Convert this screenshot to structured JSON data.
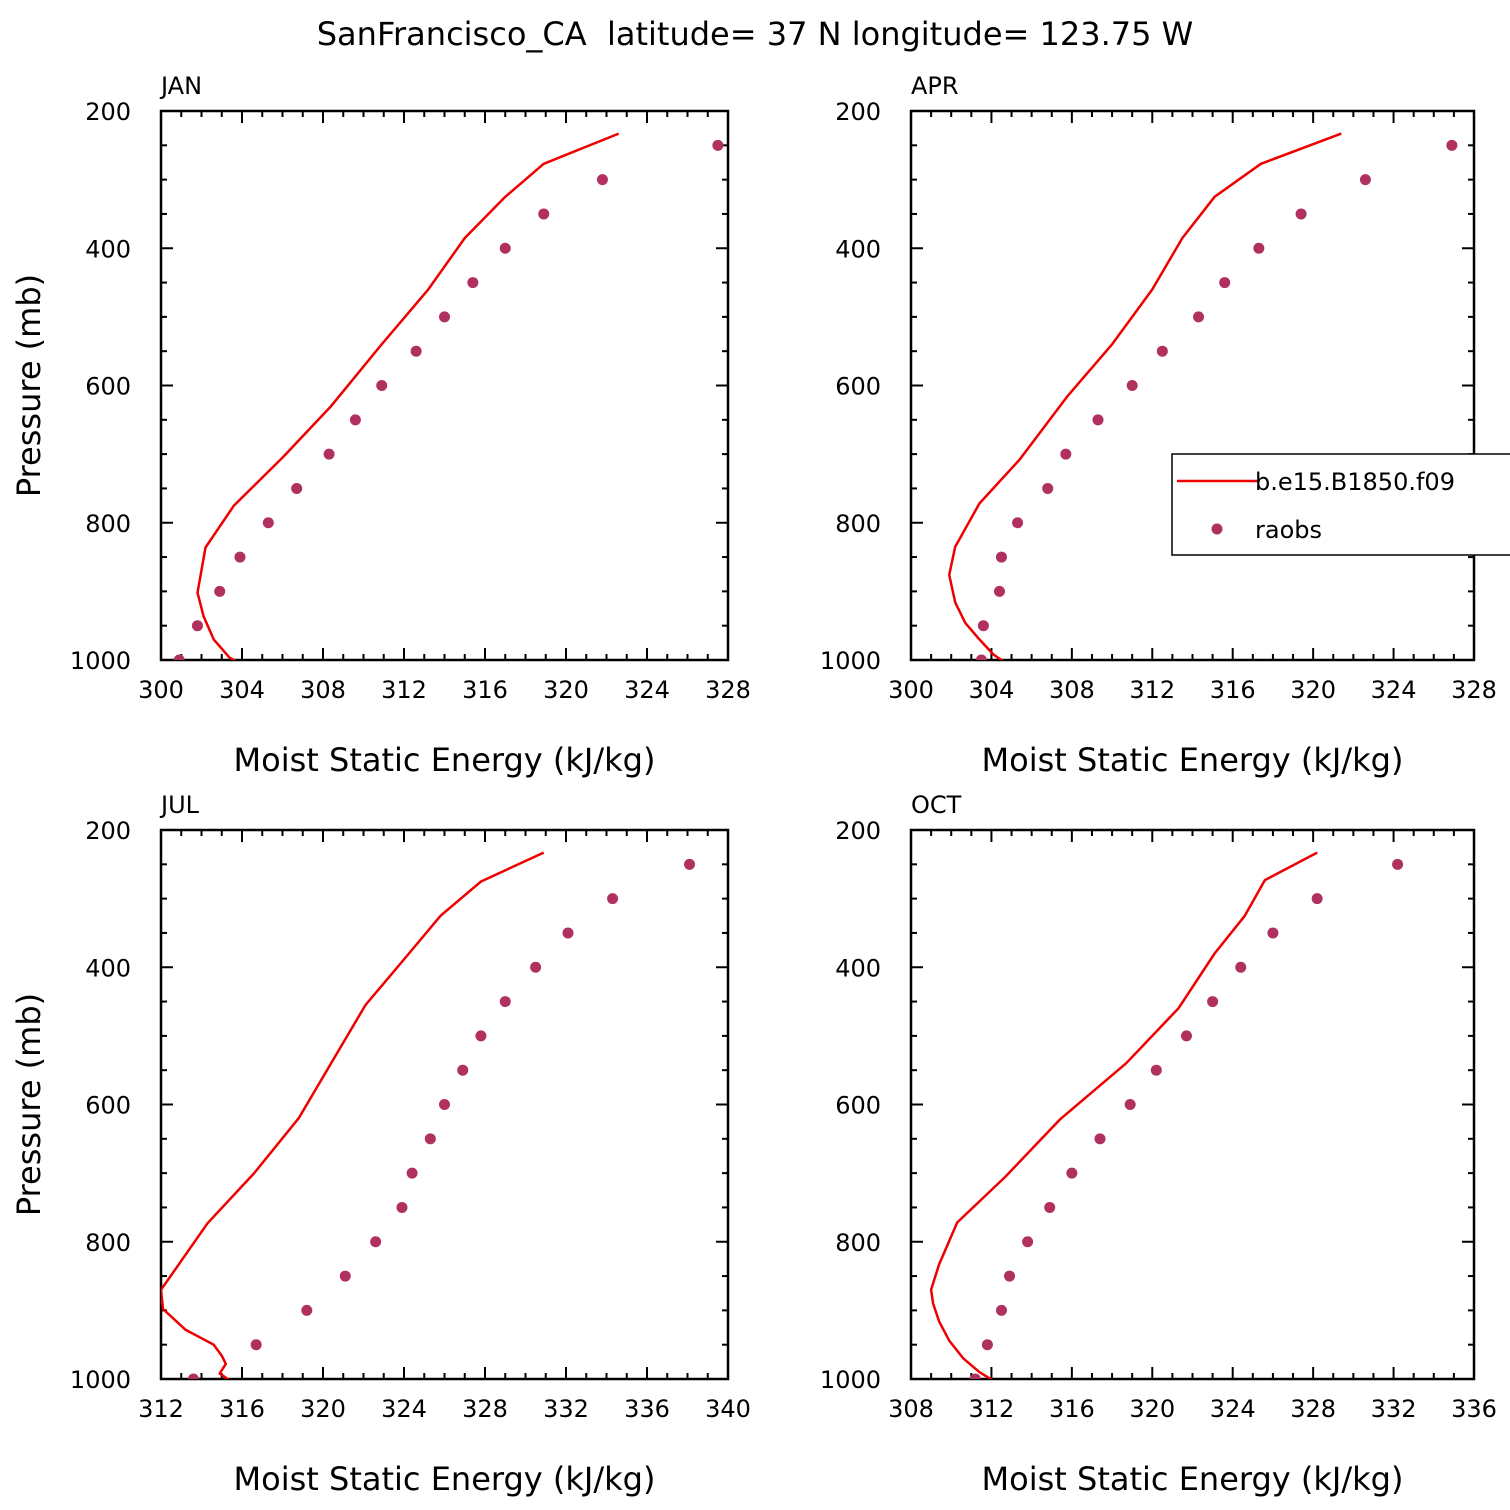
{
  "title": "SanFrancisco_CA  latitude= 37 N longitude= 123.75 W",
  "colors": {
    "model": "#ee0000",
    "obs": "#b03060",
    "axis": "#000000"
  },
  "legend": {
    "position": "right",
    "panel": 1,
    "entries": [
      "b.e15.B1850.f09",
      "raobs"
    ]
  },
  "chart_data": [
    {
      "type": "line",
      "panel_label": "JAN",
      "xlabel": "Moist Static Energy (kJ/kg)",
      "ylabel": "Pressure (mb)",
      "xlim": [
        300,
        328
      ],
      "xticks": [
        300,
        304,
        308,
        312,
        316,
        320,
        324,
        328
      ],
      "ylim": [
        200,
        1000
      ],
      "yticks": [
        200,
        400,
        600,
        800,
        1000
      ],
      "series": [
        {
          "name": "b.e15.B1850.f09",
          "kind": "line",
          "x": [
            304.4,
            303.4,
            302.6,
            302.1,
            301.8,
            302.2,
            303.6,
            306.0,
            308.4,
            310.9,
            313.2,
            315.0,
            317.0,
            318.9,
            322.6
          ],
          "y": [
            1012,
            997,
            970,
            936,
            902,
            836,
            775,
            705,
            630,
            540,
            460,
            385,
            325,
            277,
            233
          ]
        },
        {
          "name": "raobs",
          "kind": "scatter",
          "x": [
            300.9,
            301.8,
            302.9,
            303.9,
            305.3,
            306.7,
            308.3,
            309.6,
            310.9,
            312.6,
            314.0,
            315.4,
            317.0,
            318.9,
            321.8,
            327.5
          ],
          "y": [
            1000,
            950,
            900,
            850,
            800,
            750,
            700,
            650,
            600,
            550,
            500,
            450,
            400,
            350,
            300,
            250
          ]
        }
      ]
    },
    {
      "type": "line",
      "panel_label": "APR",
      "xlabel": "Moist Static Energy (kJ/kg)",
      "ylabel": "",
      "xlim": [
        300,
        328
      ],
      "xticks": [
        300,
        304,
        308,
        312,
        316,
        320,
        324,
        328
      ],
      "ylim": [
        200,
        1000
      ],
      "yticks": [
        200,
        400,
        600,
        800,
        1000
      ],
      "series": [
        {
          "name": "b.e15.B1850.f09",
          "kind": "line",
          "x": [
            305.0,
            304.1,
            303.4,
            302.7,
            302.2,
            301.9,
            302.2,
            303.4,
            305.4,
            307.8,
            310.0,
            312.0,
            313.5,
            315.1,
            317.4,
            321.4
          ],
          "y": [
            1010,
            992,
            970,
            946,
            916,
            876,
            835,
            772,
            708,
            615,
            540,
            460,
            385,
            325,
            277,
            233
          ]
        },
        {
          "name": "raobs",
          "kind": "scatter",
          "x": [
            303.5,
            303.6,
            304.4,
            304.5,
            305.3,
            306.8,
            307.7,
            309.3,
            311.0,
            312.5,
            314.3,
            315.6,
            317.3,
            319.4,
            322.6,
            326.9
          ],
          "y": [
            1000,
            950,
            900,
            850,
            800,
            750,
            700,
            650,
            600,
            550,
            500,
            450,
            400,
            350,
            300,
            250
          ]
        }
      ]
    },
    {
      "type": "line",
      "panel_label": "JUL",
      "xlabel": "Moist Static Energy (kJ/kg)",
      "ylabel": "Pressure (mb)",
      "xlim": [
        312,
        340
      ],
      "xticks": [
        312,
        316,
        320,
        324,
        328,
        332,
        336,
        340
      ],
      "ylim": [
        200,
        1000
      ],
      "yticks": [
        200,
        400,
        600,
        800,
        1000
      ],
      "series": [
        {
          "name": "b.e15.B1850.f09",
          "kind": "line",
          "x": [
            315.7,
            314.9,
            315.2,
            315.0,
            314.6,
            313.2,
            312.1,
            312.0,
            314.3,
            316.6,
            318.8,
            320.5,
            322.1,
            324.1,
            325.8,
            327.8,
            330.9
          ],
          "y": [
            1008,
            992,
            978,
            966,
            950,
            928,
            898,
            870,
            773,
            700,
            620,
            535,
            455,
            385,
            325,
            275,
            233
          ]
        },
        {
          "name": "raobs",
          "kind": "scatter",
          "x": [
            313.6,
            316.7,
            319.2,
            321.1,
            322.6,
            323.9,
            324.4,
            325.3,
            326.0,
            326.9,
            327.8,
            329.0,
            330.5,
            332.1,
            334.3,
            338.1
          ],
          "y": [
            1000,
            950,
            900,
            850,
            800,
            750,
            700,
            650,
            600,
            550,
            500,
            450,
            400,
            350,
            300,
            250
          ]
        }
      ]
    },
    {
      "type": "line",
      "panel_label": "OCT",
      "xlabel": "Moist Static Energy (kJ/kg)",
      "ylabel": "",
      "xlim": [
        308,
        336
      ],
      "xticks": [
        308,
        312,
        316,
        320,
        324,
        328,
        332,
        336
      ],
      "ylim": [
        200,
        1000
      ],
      "yticks": [
        200,
        400,
        600,
        800,
        1000
      ],
      "series": [
        {
          "name": "b.e15.B1850.f09",
          "kind": "line",
          "x": [
            312.4,
            311.4,
            310.6,
            309.9,
            309.4,
            309.1,
            309.0,
            309.4,
            310.3,
            312.7,
            315.4,
            318.7,
            321.3,
            323.1,
            324.6,
            325.6,
            328.2
          ],
          "y": [
            1008,
            990,
            970,
            944,
            916,
            890,
            870,
            833,
            772,
            705,
            622,
            540,
            460,
            380,
            325,
            273,
            233
          ]
        },
        {
          "name": "raobs",
          "kind": "scatter",
          "x": [
            311.2,
            311.8,
            312.5,
            312.9,
            313.8,
            314.9,
            316.0,
            317.4,
            318.9,
            320.2,
            321.7,
            323.0,
            324.4,
            326.0,
            328.2,
            332.2
          ],
          "y": [
            1000,
            950,
            900,
            850,
            800,
            750,
            700,
            650,
            600,
            550,
            500,
            450,
            400,
            350,
            300,
            250
          ]
        }
      ]
    }
  ]
}
